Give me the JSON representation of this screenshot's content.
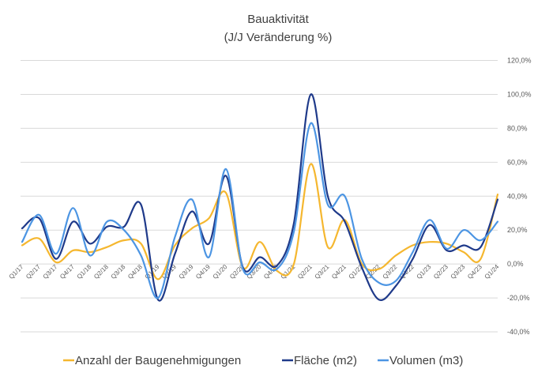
{
  "chart_data": {
    "type": "line",
    "title": "Bauaktivität",
    "subtitle": "(J/J Veränderung %)",
    "xlabel": "",
    "ylabel": "",
    "categories": [
      "Q1/17",
      "Q2/17",
      "Q3/17",
      "Q4/17",
      "Q1/18",
      "Q2/18",
      "Q3/18",
      "Q4/18",
      "Q1/19",
      "Q2/19",
      "Q3/19",
      "Q4/19",
      "Q1/20",
      "Q2/20",
      "Q3/20",
      "Q4/20",
      "Q1/21",
      "Q2/21",
      "Q3/21",
      "Q4/21",
      "Q1/22",
      "Q2/22",
      "Q3/22",
      "Q4/22",
      "Q1/23",
      "Q2/23",
      "Q3/23",
      "Q4/23",
      "Q1/24"
    ],
    "y_ticks": [
      "-40,0%",
      "-20,0%",
      "0,0%",
      "20,0%",
      "40,0%",
      "60,0%",
      "80,0%",
      "100,0%",
      "120,0%"
    ],
    "ylim": [
      -40,
      120
    ],
    "y_axis_side": "right",
    "grid": true,
    "legend_position": "bottom",
    "series": [
      {
        "name": "Anzahl der Baugenehmigungen",
        "color": "#F5B72F",
        "values": [
          11,
          15,
          1,
          8,
          7,
          10,
          14,
          12,
          -9,
          11,
          21,
          27,
          42,
          -2,
          13,
          -4,
          0,
          59,
          10,
          26,
          0,
          -3,
          5,
          11,
          13,
          12,
          7,
          3,
          41
        ]
      },
      {
        "name": "Fläche (m2)",
        "color": "#1F3A8A",
        "values": [
          21,
          27,
          3,
          25,
          12,
          22,
          22,
          35,
          -21,
          6,
          31,
          12,
          52,
          -2,
          4,
          -1,
          24,
          100,
          40,
          25,
          -2,
          -21,
          -13,
          3,
          23,
          8,
          11,
          10,
          38
        ]
      },
      {
        "name": "Volumen (m3)",
        "color": "#4C95E3",
        "values": [
          13,
          29,
          6,
          33,
          5,
          25,
          20,
          5,
          -20,
          16,
          38,
          4,
          56,
          -3,
          1,
          -3,
          19,
          83,
          35,
          40,
          3,
          -11,
          -10,
          7,
          26,
          9,
          20,
          14,
          25
        ]
      }
    ]
  }
}
